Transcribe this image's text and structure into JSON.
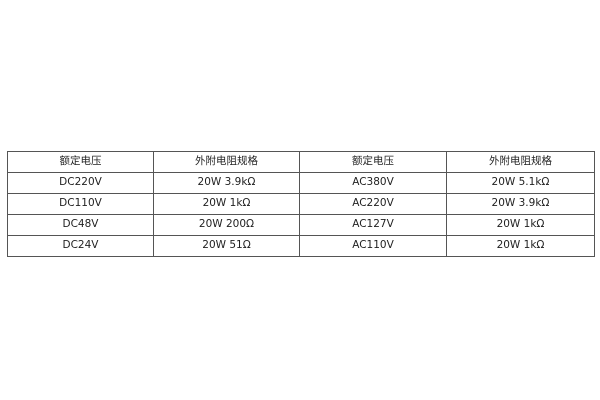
{
  "chart_data": {
    "type": "table",
    "headers": [
      "额定电压",
      "外附电阻规格",
      "额定电压",
      "外附电阻规格"
    ],
    "rows": [
      [
        "DC220V",
        "20W 3.9kΩ",
        "AC380V",
        "20W 5.1kΩ"
      ],
      [
        "DC110V",
        "20W 1kΩ",
        "AC220V",
        "20W 3.9kΩ"
      ],
      [
        "DC48V",
        "20W 200Ω",
        "AC127V",
        "20W 1kΩ"
      ],
      [
        "DC24V",
        "20W 51Ω",
        "AC110V",
        "20W 1kΩ"
      ]
    ]
  }
}
